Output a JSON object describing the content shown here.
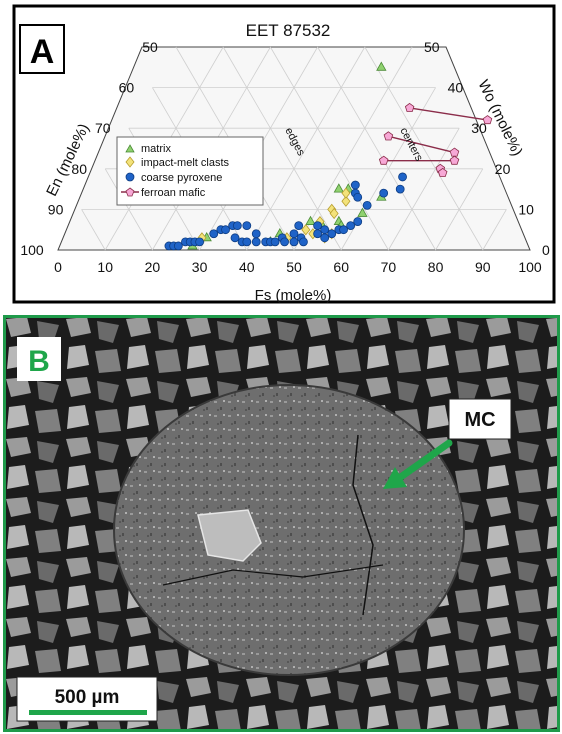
{
  "panel_a": {
    "label": "A",
    "title": "EET 87532",
    "left_axis_label": "En (mole%)",
    "right_axis_label": "Wo (mole%)",
    "bottom_axis_label": "Fs (mole%)",
    "edges_note": "edges",
    "centers_note": "centers",
    "legend": [
      {
        "name": "matrix",
        "marker": "triangle",
        "color": "#8fd16f"
      },
      {
        "name": "impact-melt clasts",
        "marker": "diamond",
        "color": "#f3e27a"
      },
      {
        "name": "coarse pyroxene",
        "marker": "circle",
        "color": "#1f63c7"
      },
      {
        "name": "ferroan mafic",
        "marker": "pentagon",
        "color": "#f7a8d6"
      }
    ],
    "colors": {
      "matrix": "#8fd16f",
      "impact": "#f3e27a",
      "coarse": "#1f63c7",
      "ferroan": "#f7a8d6",
      "ferroan_line": "#8b2d4a"
    }
  },
  "chart_data": {
    "type": "scatter",
    "title": "EET 87532",
    "xlabel": "Fs (mole%)",
    "ylabel": "Wo (mole%)",
    "xlim": [
      0,
      100
    ],
    "ylim": [
      0,
      50
    ],
    "bottom_ticks": [
      "0",
      "10",
      "20",
      "30",
      "40",
      "50",
      "60",
      "70",
      "80",
      "90",
      "100"
    ],
    "left_ticks": [
      "100",
      "90",
      "80",
      "70",
      "60",
      "50"
    ],
    "right_ticks": [
      "0",
      "10",
      "20",
      "30",
      "40",
      "50"
    ],
    "grid": true,
    "legend_position": "left",
    "series": [
      {
        "name": "matrix",
        "points": [
          [
            28,
            1
          ],
          [
            30,
            3
          ],
          [
            44,
            2
          ],
          [
            45,
            4
          ],
          [
            46,
            45
          ],
          [
            50,
            7
          ],
          [
            53,
            6
          ],
          [
            52,
            15
          ],
          [
            54,
            15
          ],
          [
            56,
            7
          ],
          [
            57,
            6
          ],
          [
            60,
            9
          ],
          [
            62,
            13
          ]
        ]
      },
      {
        "name": "impact-melt clasts",
        "points": [
          [
            29,
            3
          ],
          [
            47,
            3
          ],
          [
            50,
            5
          ],
          [
            52,
            4
          ],
          [
            53,
            10
          ],
          [
            54,
            9
          ],
          [
            55,
            12
          ],
          [
            56,
            4
          ],
          [
            54,
            14
          ],
          [
            55,
            3
          ],
          [
            52,
            7
          ]
        ]
      },
      {
        "name": "coarse pyroxene",
        "points": [
          [
            23,
            1
          ],
          [
            24,
            1
          ],
          [
            25,
            1
          ],
          [
            26,
            2
          ],
          [
            27,
            2
          ],
          [
            28,
            2
          ],
          [
            29,
            2
          ],
          [
            31,
            4
          ],
          [
            32,
            5
          ],
          [
            33,
            5
          ],
          [
            34,
            6
          ],
          [
            35,
            6
          ],
          [
            37,
            6
          ],
          [
            36,
            3
          ],
          [
            38,
            2
          ],
          [
            39,
            2
          ],
          [
            40,
            4
          ],
          [
            41,
            2
          ],
          [
            43,
            2
          ],
          [
            44,
            2
          ],
          [
            45,
            2
          ],
          [
            46,
            3
          ],
          [
            47,
            2
          ],
          [
            48,
            4
          ],
          [
            48,
            6
          ],
          [
            49,
            2
          ],
          [
            50,
            3
          ],
          [
            51,
            2
          ],
          [
            52,
            6
          ],
          [
            53,
            4
          ],
          [
            54,
            5
          ],
          [
            55,
            3
          ],
          [
            56,
            4
          ],
          [
            57,
            5
          ],
          [
            58,
            5
          ],
          [
            59,
            6
          ],
          [
            60,
            7
          ],
          [
            55,
            16
          ],
          [
            56,
            14
          ],
          [
            57,
            13
          ],
          [
            62,
            14
          ],
          [
            64,
            18
          ],
          [
            65,
            15
          ],
          [
            60,
            11
          ]
        ]
      },
      {
        "name": "ferroan mafic",
        "points": [
          [
            57,
            35
          ],
          [
            75,
            32
          ],
          [
            56,
            28
          ],
          [
            72,
            24
          ],
          [
            58,
            22
          ],
          [
            73,
            22
          ],
          [
            71,
            20
          ],
          [
            72,
            19
          ]
        ]
      }
    ]
  },
  "panel_b": {
    "label": "B",
    "callout": "MC",
    "scalebar": "500 µm",
    "colors": {
      "frame": "#1f9a4a",
      "arrow": "#1fa64a"
    }
  }
}
